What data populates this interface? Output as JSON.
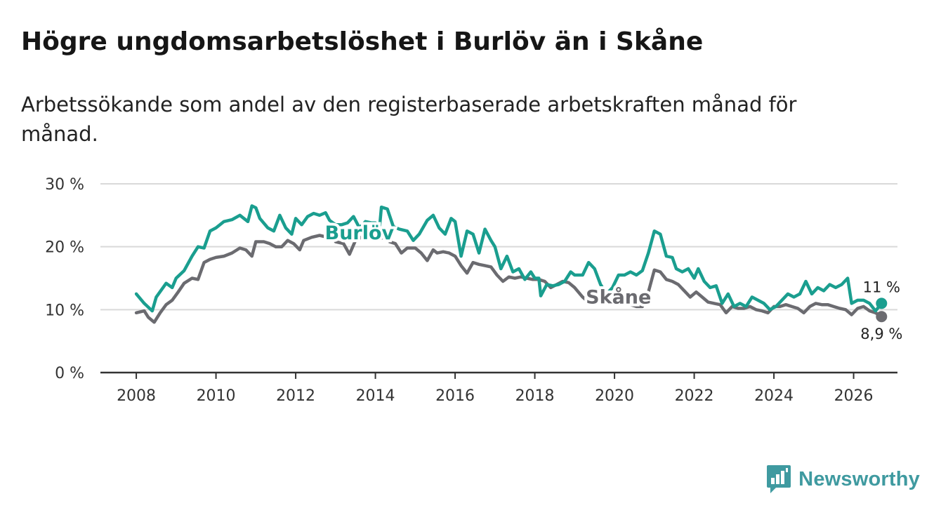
{
  "header": {
    "title": "Högre ungdomsarbetslöshet i Burlöv än i Skåne",
    "subtitle": "Arbetssökande som andel av den registerbaserade arbetskraften månad för månad."
  },
  "brand": {
    "name": "Newsworthy",
    "color": "#3f9aa0"
  },
  "chart_data": {
    "type": "line",
    "title": "Högre ungdomsarbetslöshet i Burlöv än i Skåne",
    "subtitle": "Arbetssökande som andel av den registerbaserade arbetskraften månad för månad.",
    "xlabel": "",
    "ylabel": "",
    "xlim": [
      2007.1,
      2027.1
    ],
    "ylim": [
      0,
      30
    ],
    "grid": true,
    "x_ticks": [
      2008,
      2010,
      2012,
      2014,
      2016,
      2018,
      2020,
      2022,
      2024,
      2026
    ],
    "x_tick_labels": [
      "2008",
      "2010",
      "2012",
      "2014",
      "2016",
      "2018",
      "2020",
      "2022",
      "2024",
      "2026"
    ],
    "y_ticks": [
      0,
      10,
      20,
      30
    ],
    "y_tick_labels": [
      "0 %",
      "10 %",
      "20 %",
      "30 %"
    ],
    "series": [
      {
        "name": "Burlöv",
        "color": "#1a9e8f",
        "end_label": "11 %",
        "points": [
          [
            2008.0,
            12.5
          ],
          [
            2008.2,
            11.0
          ],
          [
            2008.4,
            9.8
          ],
          [
            2008.5,
            12.0
          ],
          [
            2008.75,
            14.2
          ],
          [
            2008.9,
            13.5
          ],
          [
            2009.0,
            15.0
          ],
          [
            2009.2,
            16.2
          ],
          [
            2009.4,
            18.5
          ],
          [
            2009.55,
            20.0
          ],
          [
            2009.7,
            19.8
          ],
          [
            2009.85,
            22.5
          ],
          [
            2010.0,
            23.0
          ],
          [
            2010.2,
            24.0
          ],
          [
            2010.4,
            24.3
          ],
          [
            2010.6,
            25.0
          ],
          [
            2010.8,
            24.0
          ],
          [
            2010.9,
            26.5
          ],
          [
            2011.0,
            26.2
          ],
          [
            2011.1,
            24.5
          ],
          [
            2011.3,
            23.0
          ],
          [
            2011.45,
            22.5
          ],
          [
            2011.6,
            25.0
          ],
          [
            2011.75,
            23.0
          ],
          [
            2011.9,
            22.0
          ],
          [
            2012.0,
            24.5
          ],
          [
            2012.15,
            23.5
          ],
          [
            2012.3,
            24.8
          ],
          [
            2012.45,
            25.3
          ],
          [
            2012.6,
            25.0
          ],
          [
            2012.75,
            25.4
          ],
          [
            2012.85,
            24.2
          ],
          [
            2013.0,
            23.5
          ],
          [
            2013.15,
            23.5
          ],
          [
            2013.3,
            23.8
          ],
          [
            2013.45,
            24.8
          ],
          [
            2013.6,
            23.0
          ],
          [
            2013.75,
            24.0
          ],
          [
            2013.9,
            23.8
          ],
          [
            2014.0,
            23.8
          ],
          [
            2014.1,
            22.8
          ],
          [
            2014.15,
            26.3
          ],
          [
            2014.3,
            26.0
          ],
          [
            2014.45,
            23.2
          ],
          [
            2014.6,
            22.8
          ],
          [
            2014.8,
            22.5
          ],
          [
            2014.95,
            21.0
          ],
          [
            2015.1,
            22.0
          ],
          [
            2015.3,
            24.2
          ],
          [
            2015.45,
            25.0
          ],
          [
            2015.6,
            23.0
          ],
          [
            2015.75,
            22.0
          ],
          [
            2015.9,
            24.5
          ],
          [
            2016.0,
            24.0
          ],
          [
            2016.15,
            18.5
          ],
          [
            2016.3,
            22.5
          ],
          [
            2016.45,
            22.0
          ],
          [
            2016.6,
            19.0
          ],
          [
            2016.75,
            22.8
          ],
          [
            2016.9,
            21.0
          ],
          [
            2017.0,
            20.0
          ],
          [
            2017.15,
            16.5
          ],
          [
            2017.3,
            18.5
          ],
          [
            2017.45,
            16.0
          ],
          [
            2017.6,
            16.5
          ],
          [
            2017.75,
            14.8
          ],
          [
            2017.9,
            16.0
          ],
          [
            2018.0,
            15.0
          ],
          [
            2018.1,
            15.0
          ],
          [
            2018.15,
            12.2
          ],
          [
            2018.3,
            14.0
          ],
          [
            2018.45,
            13.8
          ],
          [
            2018.6,
            14.0
          ],
          [
            2018.75,
            14.5
          ],
          [
            2018.9,
            16.0
          ],
          [
            2019.0,
            15.5
          ],
          [
            2019.2,
            15.5
          ],
          [
            2019.35,
            17.5
          ],
          [
            2019.5,
            16.5
          ],
          [
            2019.65,
            14.0
          ],
          [
            2019.8,
            12.5
          ],
          [
            2019.95,
            13.5
          ],
          [
            2020.1,
            15.5
          ],
          [
            2020.25,
            15.5
          ],
          [
            2020.4,
            16.0
          ],
          [
            2020.55,
            15.5
          ],
          [
            2020.7,
            16.2
          ],
          [
            2020.85,
            19.0
          ],
          [
            2021.0,
            22.5
          ],
          [
            2021.15,
            22.0
          ],
          [
            2021.3,
            18.5
          ],
          [
            2021.45,
            18.3
          ],
          [
            2021.55,
            16.5
          ],
          [
            2021.7,
            16.0
          ],
          [
            2021.85,
            16.5
          ],
          [
            2022.0,
            15.0
          ],
          [
            2022.1,
            16.5
          ],
          [
            2022.25,
            14.5
          ],
          [
            2022.4,
            13.5
          ],
          [
            2022.55,
            13.8
          ],
          [
            2022.7,
            11.0
          ],
          [
            2022.85,
            12.5
          ],
          [
            2023.0,
            10.5
          ],
          [
            2023.15,
            11.0
          ],
          [
            2023.3,
            10.5
          ],
          [
            2023.45,
            12.0
          ],
          [
            2023.6,
            11.5
          ],
          [
            2023.75,
            11.0
          ],
          [
            2023.9,
            10.0
          ],
          [
            2024.05,
            10.5
          ],
          [
            2024.2,
            11.5
          ],
          [
            2024.35,
            12.5
          ],
          [
            2024.5,
            12.0
          ],
          [
            2024.65,
            12.5
          ],
          [
            2024.8,
            14.5
          ],
          [
            2024.95,
            12.5
          ],
          [
            2025.1,
            13.5
          ],
          [
            2025.25,
            13.0
          ],
          [
            2025.4,
            14.0
          ],
          [
            2025.55,
            13.5
          ],
          [
            2025.7,
            14.0
          ],
          [
            2025.85,
            15.0
          ],
          [
            2025.95,
            11.0
          ],
          [
            2026.1,
            11.5
          ],
          [
            2026.25,
            11.5
          ],
          [
            2026.4,
            11.0
          ],
          [
            2026.55,
            9.8
          ],
          [
            2026.7,
            11.0
          ]
        ]
      },
      {
        "name": "Skåne",
        "color": "#6b6b70",
        "end_label": "8,9 %",
        "points": [
          [
            2008.0,
            9.5
          ],
          [
            2008.2,
            9.8
          ],
          [
            2008.3,
            8.8
          ],
          [
            2008.45,
            8.0
          ],
          [
            2008.6,
            9.5
          ],
          [
            2008.75,
            10.8
          ],
          [
            2008.9,
            11.5
          ],
          [
            2009.05,
            12.8
          ],
          [
            2009.2,
            14.2
          ],
          [
            2009.4,
            15.0
          ],
          [
            2009.55,
            14.8
          ],
          [
            2009.7,
            17.5
          ],
          [
            2009.85,
            18.0
          ],
          [
            2010.0,
            18.3
          ],
          [
            2010.2,
            18.5
          ],
          [
            2010.4,
            19.0
          ],
          [
            2010.6,
            19.8
          ],
          [
            2010.75,
            19.5
          ],
          [
            2010.9,
            18.5
          ],
          [
            2011.0,
            20.8
          ],
          [
            2011.2,
            20.8
          ],
          [
            2011.35,
            20.5
          ],
          [
            2011.5,
            20.0
          ],
          [
            2011.65,
            20.0
          ],
          [
            2011.8,
            21.0
          ],
          [
            2011.95,
            20.5
          ],
          [
            2012.1,
            19.5
          ],
          [
            2012.2,
            21.0
          ],
          [
            2012.4,
            21.5
          ],
          [
            2012.6,
            21.8
          ],
          [
            2012.8,
            21.5
          ],
          [
            2012.9,
            22.2
          ],
          [
            2013.0,
            20.8
          ],
          [
            2013.2,
            20.5
          ],
          [
            2013.35,
            18.8
          ],
          [
            2013.5,
            21.0
          ],
          [
            2013.65,
            21.5
          ],
          [
            2013.8,
            21.8
          ],
          [
            2013.95,
            21.5
          ],
          [
            2014.1,
            21.2
          ],
          [
            2014.2,
            21.5
          ],
          [
            2014.35,
            20.8
          ],
          [
            2014.5,
            20.5
          ],
          [
            2014.65,
            19.0
          ],
          [
            2014.8,
            19.8
          ],
          [
            2015.0,
            19.8
          ],
          [
            2015.15,
            19.0
          ],
          [
            2015.3,
            17.8
          ],
          [
            2015.45,
            19.5
          ],
          [
            2015.55,
            19.0
          ],
          [
            2015.7,
            19.2
          ],
          [
            2015.85,
            19.0
          ],
          [
            2016.0,
            18.5
          ],
          [
            2016.15,
            17.0
          ],
          [
            2016.3,
            15.8
          ],
          [
            2016.45,
            17.5
          ],
          [
            2016.6,
            17.2
          ],
          [
            2016.75,
            17.0
          ],
          [
            2016.9,
            16.8
          ],
          [
            2017.05,
            15.5
          ],
          [
            2017.2,
            14.5
          ],
          [
            2017.35,
            15.2
          ],
          [
            2017.5,
            15.0
          ],
          [
            2017.65,
            15.2
          ],
          [
            2017.8,
            15.0
          ],
          [
            2017.95,
            14.8
          ],
          [
            2018.1,
            14.8
          ],
          [
            2018.25,
            14.5
          ],
          [
            2018.4,
            13.5
          ],
          [
            2018.55,
            14.0
          ],
          [
            2018.7,
            14.5
          ],
          [
            2018.85,
            14.3
          ],
          [
            2019.0,
            13.5
          ],
          [
            2019.2,
            12.0
          ],
          [
            2019.35,
            11.2
          ],
          [
            2019.5,
            12.2
          ],
          [
            2019.65,
            12.8
          ],
          [
            2019.8,
            12.0
          ],
          [
            2019.95,
            11.5
          ],
          [
            2020.1,
            11.5
          ],
          [
            2020.25,
            11.0
          ],
          [
            2020.4,
            10.8
          ],
          [
            2020.55,
            10.5
          ],
          [
            2020.7,
            10.5
          ],
          [
            2020.85,
            12.8
          ],
          [
            2021.0,
            16.3
          ],
          [
            2021.15,
            16.0
          ],
          [
            2021.3,
            14.8
          ],
          [
            2021.45,
            14.5
          ],
          [
            2021.6,
            14.0
          ],
          [
            2021.75,
            13.0
          ],
          [
            2021.9,
            12.0
          ],
          [
            2022.05,
            12.8
          ],
          [
            2022.2,
            12.0
          ],
          [
            2022.35,
            11.2
          ],
          [
            2022.5,
            11.0
          ],
          [
            2022.65,
            10.8
          ],
          [
            2022.8,
            9.5
          ],
          [
            2022.95,
            10.5
          ],
          [
            2023.1,
            10.2
          ],
          [
            2023.25,
            10.2
          ],
          [
            2023.4,
            10.5
          ],
          [
            2023.55,
            10.0
          ],
          [
            2023.7,
            9.8
          ],
          [
            2023.85,
            9.5
          ],
          [
            2024.0,
            10.5
          ],
          [
            2024.15,
            10.5
          ],
          [
            2024.3,
            10.8
          ],
          [
            2024.45,
            10.5
          ],
          [
            2024.6,
            10.2
          ],
          [
            2024.75,
            9.5
          ],
          [
            2024.9,
            10.5
          ],
          [
            2025.05,
            11.0
          ],
          [
            2025.2,
            10.8
          ],
          [
            2025.35,
            10.8
          ],
          [
            2025.5,
            10.5
          ],
          [
            2025.65,
            10.2
          ],
          [
            2025.8,
            10.0
          ],
          [
            2025.95,
            9.2
          ],
          [
            2026.1,
            10.2
          ],
          [
            2026.25,
            10.5
          ],
          [
            2026.4,
            9.8
          ],
          [
            2026.55,
            9.5
          ],
          [
            2026.7,
            8.9
          ]
        ]
      }
    ]
  }
}
